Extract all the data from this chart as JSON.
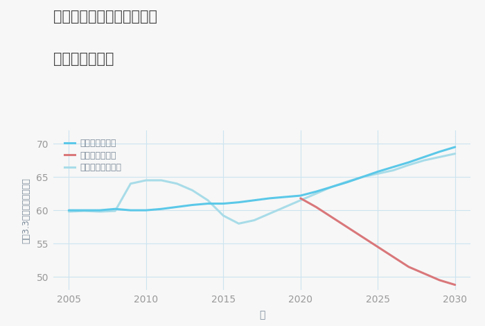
{
  "title_line1": "大阪府高槻市登美の里町の",
  "title_line2": "土地の価格推移",
  "xlabel": "年",
  "ylabel": "坪（3.3㎡）単価（万円）",
  "legend_labels": [
    "グッドシナリオ",
    "バッドシナリオ",
    "ノーマルシナリオ"
  ],
  "good_x": [
    2005,
    2006,
    2007,
    2008,
    2009,
    2010,
    2011,
    2012,
    2013,
    2014,
    2015,
    2016,
    2017,
    2018,
    2019,
    2020,
    2021,
    2022,
    2023,
    2024,
    2025,
    2026,
    2027,
    2028,
    2029,
    2030
  ],
  "good_y": [
    60.0,
    60.0,
    60.0,
    60.2,
    60.0,
    60.0,
    60.2,
    60.5,
    60.8,
    61.0,
    61.0,
    61.2,
    61.5,
    61.8,
    62.0,
    62.2,
    62.8,
    63.5,
    64.2,
    65.0,
    65.8,
    66.5,
    67.2,
    68.0,
    68.8,
    69.5
  ],
  "bad_x": [
    2020,
    2021,
    2022,
    2023,
    2024,
    2025,
    2026,
    2027,
    2028,
    2029,
    2030
  ],
  "bad_y": [
    61.8,
    60.5,
    59.0,
    57.5,
    56.0,
    54.5,
    53.0,
    51.5,
    50.5,
    49.5,
    48.8
  ],
  "normal_x": [
    2005,
    2006,
    2007,
    2008,
    2009,
    2010,
    2011,
    2012,
    2013,
    2014,
    2015,
    2016,
    2017,
    2018,
    2019,
    2020,
    2021,
    2022,
    2023,
    2024,
    2025,
    2026,
    2027,
    2028,
    2029,
    2030
  ],
  "normal_y": [
    59.8,
    59.9,
    59.8,
    59.9,
    64.0,
    64.5,
    64.5,
    64.0,
    63.0,
    61.5,
    59.2,
    58.0,
    58.5,
    59.5,
    60.5,
    61.5,
    62.5,
    63.5,
    64.3,
    65.0,
    65.5,
    66.0,
    66.8,
    67.5,
    68.0,
    68.5
  ],
  "good_color": "#5bc8e8",
  "bad_color": "#d9777a",
  "normal_color": "#a8dce8",
  "bg_color": "#f7f7f7",
  "grid_color": "#cce4f0",
  "title_color": "#444444",
  "axis_label_color": "#7a8a99",
  "tick_label_color": "#999999",
  "xlim": [
    2004,
    2031
  ],
  "ylim": [
    48,
    72
  ],
  "yticks": [
    50,
    55,
    60,
    65,
    70
  ],
  "xticks": [
    2005,
    2010,
    2015,
    2020,
    2025,
    2030
  ],
  "linewidth": 2.2
}
